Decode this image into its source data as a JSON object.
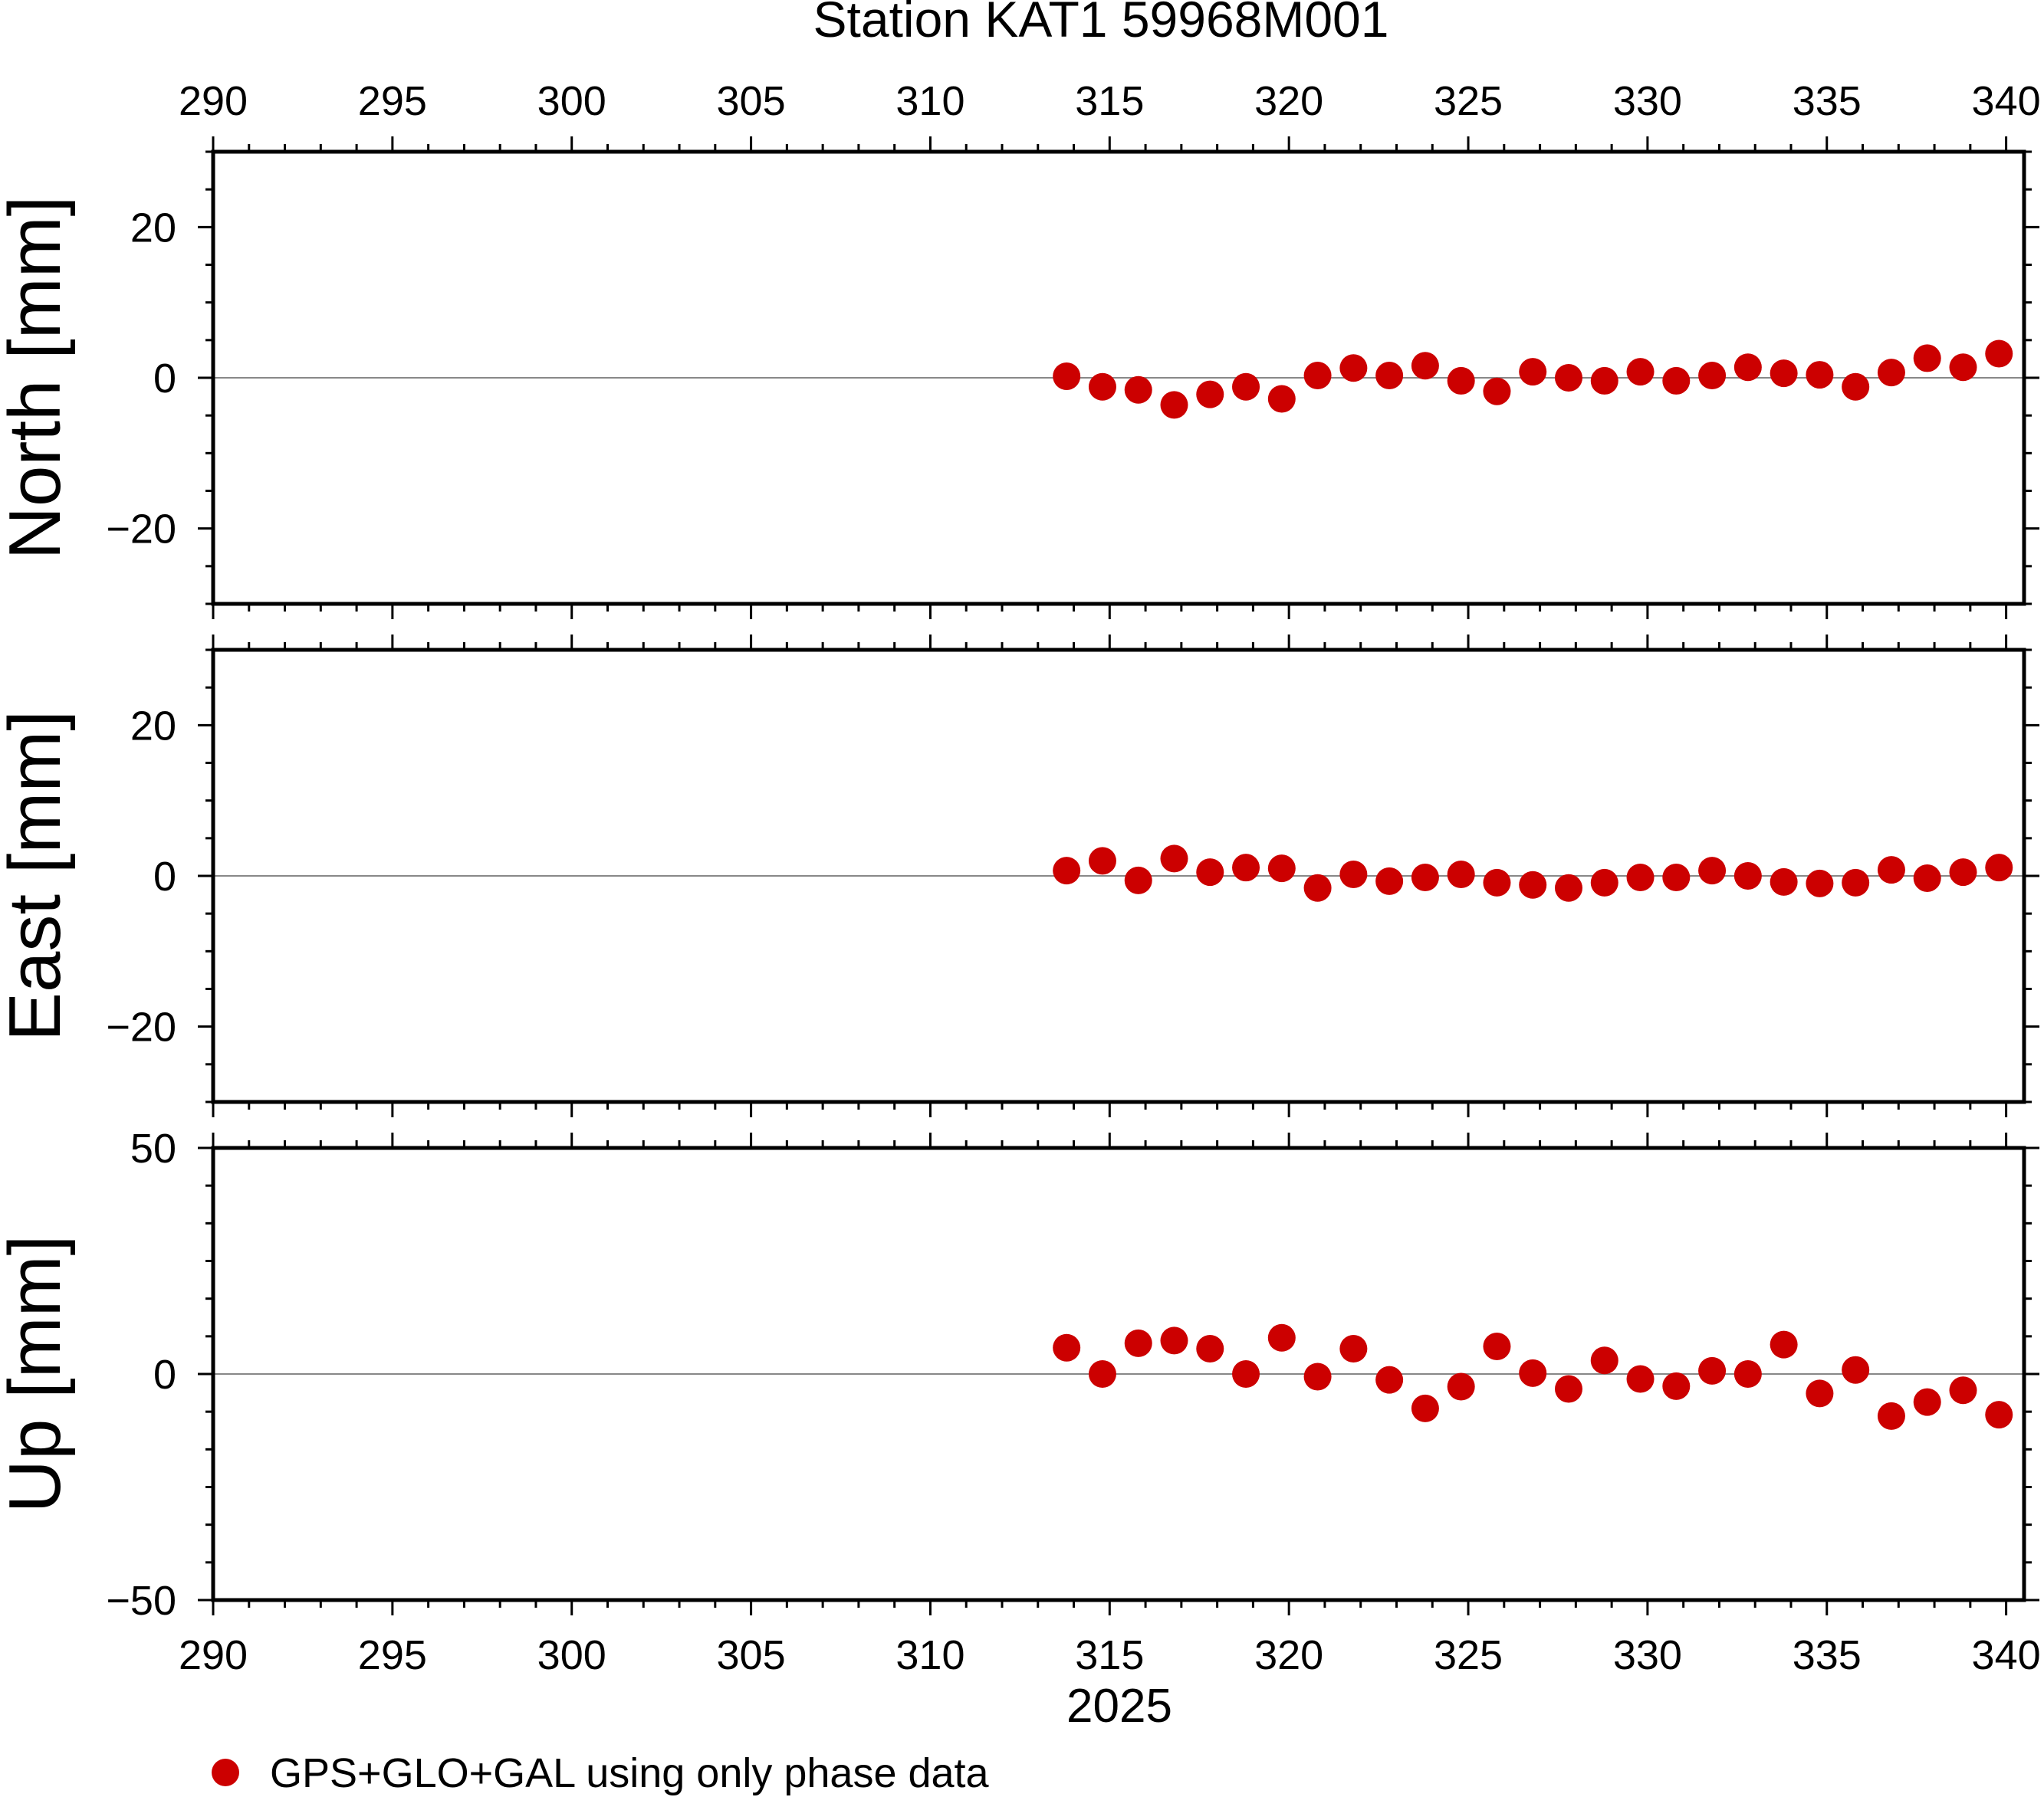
{
  "title": "Station KAT1 59968M001",
  "xlabel": "2025",
  "legend": {
    "label": "GPS+GLO+GAL using only phase data",
    "marker_color": "#cc0000",
    "position": "bottom-left"
  },
  "colors": {
    "marker": "#cc0000",
    "zero_line": "#888888",
    "frame": "#000000"
  },
  "chart_data": [
    {
      "type": "scatter",
      "panel": "north",
      "ylabel": "North [mm]",
      "xlim": [
        290,
        340.5
      ],
      "ylim": [
        -30,
        30
      ],
      "x_ticks": [
        290,
        295,
        300,
        305,
        310,
        315,
        320,
        325,
        330,
        335,
        340
      ],
      "y_ticks": [
        -20,
        0,
        20
      ],
      "y_tick_labels": [
        "−20",
        "0",
        "20"
      ],
      "zero_line": true,
      "x": [
        313.8,
        314.8,
        315.8,
        316.8,
        317.8,
        318.8,
        319.8,
        320.8,
        321.8,
        322.8,
        323.8,
        324.8,
        325.8,
        326.8,
        327.8,
        328.8,
        329.8,
        330.8,
        331.8,
        332.8,
        333.8,
        334.8,
        335.8,
        336.8,
        337.8,
        338.8,
        339.8
      ],
      "y": [
        0.2,
        -1.2,
        -1.6,
        -3.6,
        -2.2,
        -1.2,
        -2.8,
        0.3,
        1.3,
        0.3,
        1.6,
        -0.4,
        -1.8,
        0.8,
        0.0,
        -0.4,
        0.8,
        -0.4,
        0.3,
        1.4,
        0.6,
        0.4,
        -1.2,
        0.7,
        2.6,
        1.4,
        3.2
      ]
    },
    {
      "type": "scatter",
      "panel": "east",
      "ylabel": "East [mm]",
      "xlim": [
        290,
        340.5
      ],
      "ylim": [
        -30,
        30
      ],
      "x_ticks": [
        290,
        295,
        300,
        305,
        310,
        315,
        320,
        325,
        330,
        335,
        340
      ],
      "y_ticks": [
        -20,
        0,
        20
      ],
      "y_tick_labels": [
        "−20",
        "0",
        "20"
      ],
      "zero_line": true,
      "x": [
        313.8,
        314.8,
        315.8,
        316.8,
        317.8,
        318.8,
        319.8,
        320.8,
        321.8,
        322.8,
        323.8,
        324.8,
        325.8,
        326.8,
        327.8,
        328.8,
        329.8,
        330.8,
        331.8,
        332.8,
        333.8,
        334.8,
        335.8,
        336.8,
        337.8,
        338.8,
        339.8
      ],
      "y": [
        0.7,
        2.0,
        -0.6,
        2.3,
        0.5,
        1.1,
        1.0,
        -1.6,
        0.2,
        -0.7,
        -0.2,
        0.2,
        -0.9,
        -1.2,
        -1.6,
        -0.9,
        -0.2,
        -0.2,
        0.7,
        0.0,
        -0.8,
        -1.0,
        -0.9,
        0.8,
        -0.3,
        0.5,
        1.1
      ]
    },
    {
      "type": "scatter",
      "panel": "up",
      "ylabel": "Up [mm]",
      "xlim": [
        290,
        340.5
      ],
      "ylim": [
        -50,
        50
      ],
      "x_ticks": [
        290,
        295,
        300,
        305,
        310,
        315,
        320,
        325,
        330,
        335,
        340
      ],
      "y_ticks": [
        -50,
        0,
        50
      ],
      "y_tick_labels": [
        "−50",
        "0",
        "50"
      ],
      "zero_line": true,
      "x": [
        313.8,
        314.8,
        315.8,
        316.8,
        317.8,
        318.8,
        319.8,
        320.8,
        321.8,
        322.8,
        323.8,
        324.8,
        325.8,
        326.8,
        327.8,
        328.8,
        329.8,
        330.8,
        331.8,
        332.8,
        333.8,
        334.8,
        335.8,
        336.8,
        337.8,
        338.8,
        339.8
      ],
      "y": [
        5.8,
        0.0,
        6.8,
        7.4,
        5.6,
        0.0,
        8.0,
        -0.6,
        5.6,
        -1.3,
        -7.6,
        -2.8,
        6.1,
        0.2,
        -3.3,
        3.0,
        -1.1,
        -2.7,
        0.7,
        0.0,
        6.5,
        -4.3,
        0.9,
        -9.3,
        -6.2,
        -3.6,
        -9.0
      ]
    }
  ]
}
